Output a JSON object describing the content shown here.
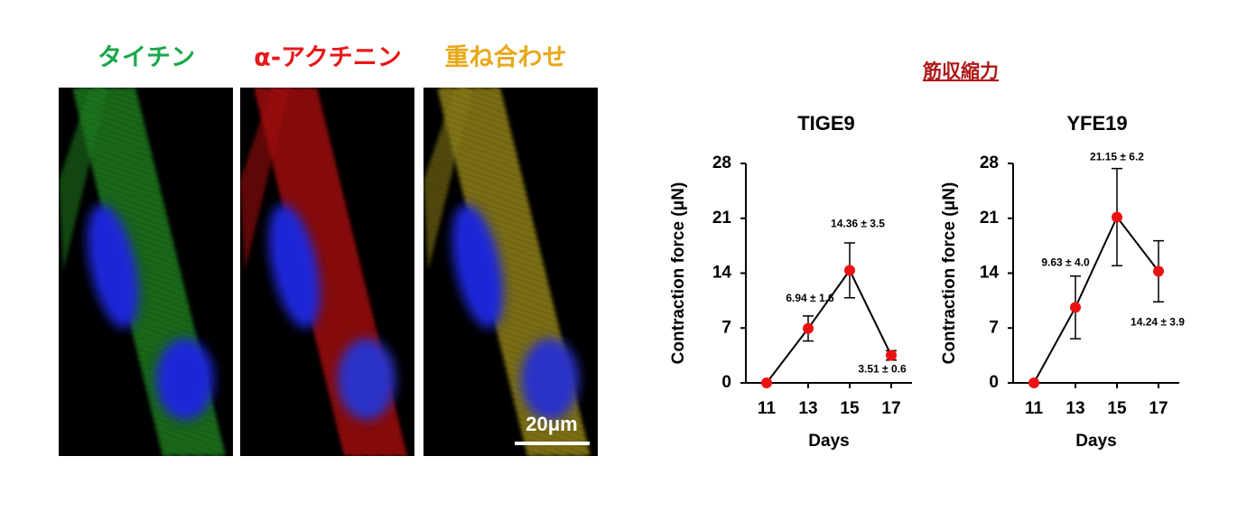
{
  "panel_labels": [
    "タイチン",
    "α-アクチニン",
    "重ね合わせ"
  ],
  "scale_bar": "20μm",
  "section_title": "筋収縮力",
  "chart_data": [
    {
      "type": "line",
      "title": "TIGE9",
      "xlabel": "Days",
      "ylabel": "Contraction force (μN)",
      "x": [
        11,
        13,
        15,
        17
      ],
      "xlim": [
        10,
        18
      ],
      "xticks": [
        11,
        13,
        15,
        17
      ],
      "values": [
        0,
        6.94,
        14.36,
        3.51
      ],
      "errors": [
        null,
        1.6,
        3.5,
        0.6
      ],
      "value_labels": [
        null,
        "6.94 ± 1.6",
        "14.36 ± 3.5",
        "3.51 ± 0.6"
      ],
      "ylim": [
        0,
        28
      ],
      "yticks": [
        0,
        7,
        14,
        21,
        28
      ],
      "color": "#ee1111",
      "line_color": "#000000"
    },
    {
      "type": "line",
      "title": "YFE19",
      "xlabel": "Days",
      "ylabel": "Contraction force (μN)",
      "x": [
        11,
        13,
        15,
        17
      ],
      "xlim": [
        10,
        18
      ],
      "xticks": [
        11,
        13,
        15,
        17
      ],
      "values": [
        0,
        9.63,
        21.15,
        14.24
      ],
      "errors": [
        null,
        4.0,
        6.2,
        3.9
      ],
      "value_labels": [
        null,
        "9.63 ± 4.0",
        "21.15 ± 6.2",
        "14.24 ± 3.9"
      ],
      "ylim": [
        0,
        28
      ],
      "yticks": [
        0,
        7,
        14,
        21,
        28
      ],
      "color": "#ee1111",
      "line_color": "#000000"
    }
  ]
}
